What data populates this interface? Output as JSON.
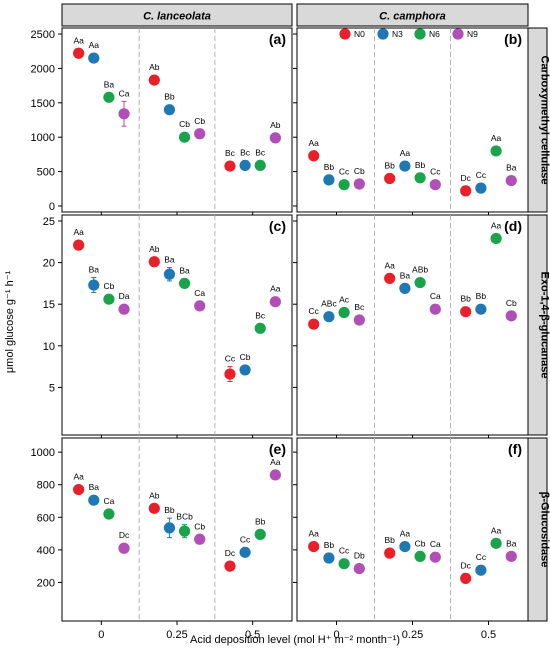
{
  "chart_data": {
    "type": "scatter",
    "ylabel": "μmol glucose g⁻¹ h⁻¹",
    "xlabel": "Acid deposition level (mol H⁺ m⁻² month⁻¹)",
    "x_tick_labels": [
      "0",
      "0.25",
      "0.5"
    ],
    "x_levels": [
      0,
      0.25,
      0.5
    ],
    "columns": [
      "C. lanceolata",
      "C. camphora"
    ],
    "rows": [
      "Carboxymethyl cellulase",
      "Exo-1,4-β-glucanase",
      "β-Glucosidase"
    ],
    "series_names": [
      "N0",
      "N3",
      "N6",
      "N9"
    ],
    "series_colors": [
      "#e8202a",
      "#1f77b4",
      "#1aa34a",
      "#b04fb5"
    ],
    "legend_position": "top-right of panel (b)",
    "grid": false,
    "panels": [
      {
        "letter": "(a)",
        "column": "C. lanceolata",
        "row": "Carboxymethyl cellulase",
        "ylim": [
          0,
          2500
        ],
        "yticks": [
          0,
          500,
          1000,
          1500,
          2000,
          2500
        ],
        "points": [
          {
            "acid": 0,
            "series": "N0",
            "value": 2220,
            "err": 40,
            "label": "Aa"
          },
          {
            "acid": 0,
            "series": "N3",
            "value": 2150,
            "err": 40,
            "label": "Aa"
          },
          {
            "acid": 0,
            "series": "N6",
            "value": 1580,
            "err": 40,
            "label": "Ba"
          },
          {
            "acid": 0,
            "series": "N9",
            "value": 1340,
            "err": 180,
            "label": "Ca"
          },
          {
            "acid": 0.25,
            "series": "N0",
            "value": 1830,
            "err": 30,
            "label": "Ab"
          },
          {
            "acid": 0.25,
            "series": "N3",
            "value": 1400,
            "err": 30,
            "label": "Bb"
          },
          {
            "acid": 0.25,
            "series": "N6",
            "value": 1000,
            "err": 30,
            "label": "Cb"
          },
          {
            "acid": 0.25,
            "series": "N9",
            "value": 1050,
            "err": 30,
            "label": "Cb"
          },
          {
            "acid": 0.5,
            "series": "N0",
            "value": 580,
            "err": 30,
            "label": "Bc"
          },
          {
            "acid": 0.5,
            "series": "N3",
            "value": 590,
            "err": 30,
            "label": "Bc"
          },
          {
            "acid": 0.5,
            "series": "N6",
            "value": 590,
            "err": 30,
            "label": "Bc"
          },
          {
            "acid": 0.5,
            "series": "N9",
            "value": 990,
            "err": 30,
            "label": "Ab"
          }
        ]
      },
      {
        "letter": "(b)",
        "column": "C. camphora",
        "row": "Carboxymethyl cellulase",
        "ylim": [
          0,
          2500
        ],
        "yticks": [
          0,
          500,
          1000,
          1500,
          2000,
          2500
        ],
        "points": [
          {
            "acid": 0,
            "series": "N0",
            "value": 730,
            "err": 30,
            "label": "Aa"
          },
          {
            "acid": 0,
            "series": "N3",
            "value": 380,
            "err": 20,
            "label": "Bb"
          },
          {
            "acid": 0,
            "series": "N6",
            "value": 310,
            "err": 20,
            "label": "Cc"
          },
          {
            "acid": 0,
            "series": "N9",
            "value": 320,
            "err": 20,
            "label": "Cb"
          },
          {
            "acid": 0.25,
            "series": "N0",
            "value": 400,
            "err": 20,
            "label": "Bb"
          },
          {
            "acid": 0.25,
            "series": "N3",
            "value": 580,
            "err": 20,
            "label": "Aa"
          },
          {
            "acid": 0.25,
            "series": "N6",
            "value": 410,
            "err": 20,
            "label": "Bb"
          },
          {
            "acid": 0.25,
            "series": "N9",
            "value": 310,
            "err": 20,
            "label": "Cc"
          },
          {
            "acid": 0.5,
            "series": "N0",
            "value": 220,
            "err": 20,
            "label": "Dc"
          },
          {
            "acid": 0.5,
            "series": "N3",
            "value": 260,
            "err": 20,
            "label": "Cc"
          },
          {
            "acid": 0.5,
            "series": "N6",
            "value": 800,
            "err": 30,
            "label": "Aa"
          },
          {
            "acid": 0.5,
            "series": "N9",
            "value": 370,
            "err": 20,
            "label": "Ba"
          }
        ]
      },
      {
        "letter": "(c)",
        "column": "C. lanceolata",
        "row": "Exo-1,4-β-glucanase",
        "ylim": [
          0,
          25
        ],
        "yticks": [
          5,
          10,
          15,
          20,
          25
        ],
        "points": [
          {
            "acid": 0,
            "series": "N0",
            "value": 22.1,
            "err": 0.4,
            "label": "Aa"
          },
          {
            "acid": 0,
            "series": "N3",
            "value": 17.3,
            "err": 0.9,
            "label": "Ba"
          },
          {
            "acid": 0,
            "series": "N6",
            "value": 15.6,
            "err": 0.4,
            "label": "Cb"
          },
          {
            "acid": 0,
            "series": "N9",
            "value": 14.4,
            "err": 0.4,
            "label": "Da"
          },
          {
            "acid": 0.25,
            "series": "N0",
            "value": 20.1,
            "err": 0.4,
            "label": "Ab"
          },
          {
            "acid": 0.25,
            "series": "N3",
            "value": 18.6,
            "err": 0.8,
            "label": "Ba"
          },
          {
            "acid": 0.25,
            "series": "N6",
            "value": 17.5,
            "err": 0.4,
            "label": "Ba"
          },
          {
            "acid": 0.25,
            "series": "N9",
            "value": 14.8,
            "err": 0.4,
            "label": "Ca"
          },
          {
            "acid": 0.5,
            "series": "N0",
            "value": 6.6,
            "err": 0.9,
            "label": "Cc"
          },
          {
            "acid": 0.5,
            "series": "N3",
            "value": 7.1,
            "err": 0.4,
            "label": "Cb"
          },
          {
            "acid": 0.5,
            "series": "N6",
            "value": 12.1,
            "err": 0.4,
            "label": "Bc"
          },
          {
            "acid": 0.5,
            "series": "N9",
            "value": 15.3,
            "err": 0.4,
            "label": "Aa"
          }
        ]
      },
      {
        "letter": "(d)",
        "column": "C. camphora",
        "row": "Exo-1,4-β-glucanase",
        "ylim": [
          0,
          25
        ],
        "yticks": [
          5,
          10,
          15,
          20,
          25
        ],
        "points": [
          {
            "acid": 0,
            "series": "N0",
            "value": 12.6,
            "err": 0.4,
            "label": "Cc"
          },
          {
            "acid": 0,
            "series": "N3",
            "value": 13.5,
            "err": 0.4,
            "label": "ABc"
          },
          {
            "acid": 0,
            "series": "N6",
            "value": 14.0,
            "err": 0.4,
            "label": "Ac"
          },
          {
            "acid": 0,
            "series": "N9",
            "value": 13.1,
            "err": 0.4,
            "label": "Bc"
          },
          {
            "acid": 0.25,
            "series": "N0",
            "value": 18.1,
            "err": 0.4,
            "label": "Aa"
          },
          {
            "acid": 0.25,
            "series": "N3",
            "value": 16.9,
            "err": 0.4,
            "label": "Ba"
          },
          {
            "acid": 0.25,
            "series": "N6",
            "value": 17.6,
            "err": 0.4,
            "label": "ABb"
          },
          {
            "acid": 0.25,
            "series": "N9",
            "value": 14.4,
            "err": 0.4,
            "label": "Ca"
          },
          {
            "acid": 0.5,
            "series": "N0",
            "value": 14.1,
            "err": 0.4,
            "label": "Bb"
          },
          {
            "acid": 0.5,
            "series": "N3",
            "value": 14.4,
            "err": 0.4,
            "label": "Bb"
          },
          {
            "acid": 0.5,
            "series": "N6",
            "value": 22.9,
            "err": 0.4,
            "label": "Aa"
          },
          {
            "acid": 0.5,
            "series": "N9",
            "value": 13.6,
            "err": 0.4,
            "label": "Cb"
          }
        ]
      },
      {
        "letter": "(e)",
        "column": "C. lanceolata",
        "row": "β-Glucosidase",
        "ylim": [
          0,
          1050
        ],
        "yticks": [
          200,
          400,
          600,
          800,
          1000
        ],
        "points": [
          {
            "acid": 0,
            "series": "N0",
            "value": 770,
            "err": 30,
            "label": "Aa"
          },
          {
            "acid": 0,
            "series": "N3",
            "value": 705,
            "err": 15,
            "label": "Ba"
          },
          {
            "acid": 0,
            "series": "N6",
            "value": 620,
            "err": 15,
            "label": "Ca"
          },
          {
            "acid": 0,
            "series": "N9",
            "value": 410,
            "err": 15,
            "label": "Dc"
          },
          {
            "acid": 0.25,
            "series": "N0",
            "value": 655,
            "err": 20,
            "label": "Ab"
          },
          {
            "acid": 0.25,
            "series": "N3",
            "value": 535,
            "err": 60,
            "label": "Bb"
          },
          {
            "acid": 0.25,
            "series": "N6",
            "value": 515,
            "err": 40,
            "label": "BCb"
          },
          {
            "acid": 0.25,
            "series": "N9",
            "value": 465,
            "err": 15,
            "label": "Cb"
          },
          {
            "acid": 0.5,
            "series": "N0",
            "value": 300,
            "err": 15,
            "label": "Dc"
          },
          {
            "acid": 0.5,
            "series": "N3",
            "value": 385,
            "err": 15,
            "label": "Cc"
          },
          {
            "acid": 0.5,
            "series": "N6",
            "value": 495,
            "err": 15,
            "label": "Bb"
          },
          {
            "acid": 0.5,
            "series": "N9",
            "value": 860,
            "err": 15,
            "label": "Aa"
          }
        ]
      },
      {
        "letter": "(f)",
        "column": "C. camphora",
        "row": "β-Glucosidase",
        "ylim": [
          0,
          1050
        ],
        "yticks": [
          200,
          400,
          600,
          800,
          1000
        ],
        "points": [
          {
            "acid": 0,
            "series": "N0",
            "value": 420,
            "err": 15,
            "label": "Aa"
          },
          {
            "acid": 0,
            "series": "N3",
            "value": 350,
            "err": 15,
            "label": "Bb"
          },
          {
            "acid": 0,
            "series": "N6",
            "value": 315,
            "err": 15,
            "label": "Cc"
          },
          {
            "acid": 0,
            "series": "N9",
            "value": 285,
            "err": 15,
            "label": "Db"
          },
          {
            "acid": 0.25,
            "series": "N0",
            "value": 380,
            "err": 15,
            "label": "Bb"
          },
          {
            "acid": 0.25,
            "series": "N3",
            "value": 420,
            "err": 15,
            "label": "Aa"
          },
          {
            "acid": 0.25,
            "series": "N6",
            "value": 360,
            "err": 15,
            "label": "Cb"
          },
          {
            "acid": 0.25,
            "series": "N9",
            "value": 355,
            "err": 15,
            "label": "Ca"
          },
          {
            "acid": 0.5,
            "series": "N0",
            "value": 225,
            "err": 15,
            "label": "Dc"
          },
          {
            "acid": 0.5,
            "series": "N3",
            "value": 275,
            "err": 15,
            "label": "Cc"
          },
          {
            "acid": 0.5,
            "series": "N6",
            "value": 440,
            "err": 15,
            "label": "Aa"
          },
          {
            "acid": 0.5,
            "series": "N9",
            "value": 360,
            "err": 15,
            "label": "Ba"
          }
        ]
      }
    ]
  }
}
